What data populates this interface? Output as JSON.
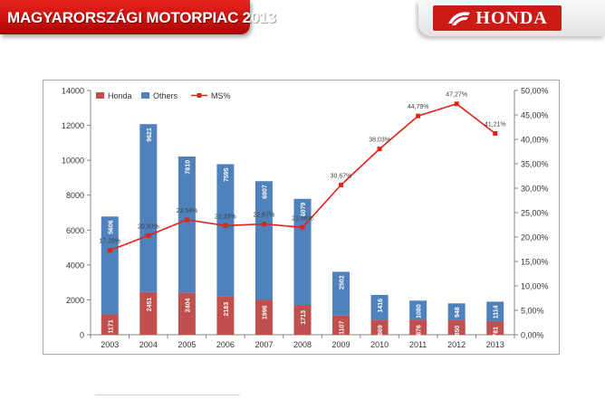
{
  "slide": {
    "title": "MAGYARORSZÁGI MOTORPIAC 2013",
    "logo": "HONDA",
    "brand_red": "#cc1a15"
  },
  "chart_data": {
    "type": "bar",
    "stacked": true,
    "categories": [
      "2003",
      "2004",
      "2005",
      "2006",
      "2007",
      "2008",
      "2009",
      "2010",
      "2011",
      "2012",
      "2013"
    ],
    "series": [
      {
        "name": "Honda",
        "color": "#c0504d",
        "values": [
          1171,
          2451,
          2404,
          2183,
          1996,
          1713,
          1107,
          869,
          876,
          850,
          781
        ]
      },
      {
        "name": "Others",
        "color": "#4f81bd",
        "values": [
          5606,
          9621,
          7810,
          7595,
          6807,
          6079,
          2502,
          1416,
          1080,
          948,
          1114
        ]
      }
    ],
    "bar_value_labels": {
      "Honda": [
        "1171",
        "2451",
        "2404",
        "2183",
        "1996",
        "1713",
        "1107",
        "869",
        "876",
        "850",
        "781"
      ],
      "Others": [
        "5606",
        "9621",
        "7810",
        "7595",
        "6807",
        "6079",
        "2502",
        "1416",
        "1080",
        "948",
        "1114"
      ]
    },
    "line": {
      "name": "MS%",
      "color": "#e32219",
      "axis": "secondary",
      "values": [
        17.28,
        20.3,
        23.54,
        22.33,
        22.67,
        21.98,
        30.67,
        38.03,
        44.79,
        47.27,
        41.21
      ],
      "labels": [
        "17,28%",
        "20,30%",
        "23,54%",
        "22,33%",
        "22,67%",
        "21,98%",
        "30,67%",
        "38,03%",
        "44,79%",
        "47,27%",
        "41,21%"
      ]
    },
    "y_left": {
      "min": 0,
      "max": 14000,
      "ticks": [
        "0",
        "2000",
        "4000",
        "6000",
        "8000",
        "10000",
        "12000",
        "14000"
      ]
    },
    "y_right": {
      "min": 0,
      "max": 50,
      "ticks": [
        "0,00%",
        "5,00%",
        "10,00%",
        "15,00%",
        "20,00%",
        "25,00%",
        "30,00%",
        "35,00%",
        "40,00%",
        "45,00%",
        "50,00%"
      ]
    },
    "legend": [
      "Honda",
      "Others",
      "MS%"
    ],
    "legend_position": "top-left",
    "grid": false
  }
}
